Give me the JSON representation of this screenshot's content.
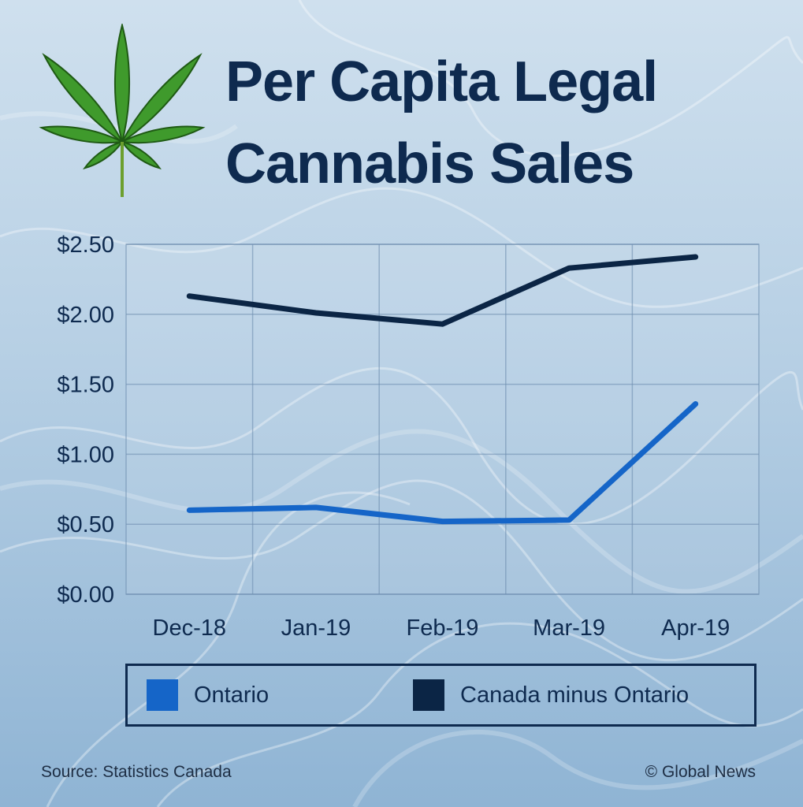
{
  "title_lines": [
    "Per Capita Legal",
    "Cannabis Sales"
  ],
  "source": "Source: Statistics Canada",
  "credit": "© Global News",
  "colors": {
    "background": "#b6cfe4",
    "title": "#0e2a4f",
    "ontario": "#1565c8",
    "canada_minus_ontario": "#0b2545",
    "grid": "#6f8fb0"
  },
  "icons": {
    "logo": "cannabis-leaf-icon"
  },
  "chart_data": {
    "type": "line",
    "title": "Per Capita Legal Cannabis Sales",
    "xlabel": "",
    "ylabel": "",
    "categories": [
      "Dec-18",
      "Jan-19",
      "Feb-19",
      "Mar-19",
      "Apr-19"
    ],
    "y_ticks": [
      "$0.00",
      "$0.50",
      "$1.00",
      "$1.50",
      "$2.00",
      "$2.50"
    ],
    "ylim": [
      0,
      2.5
    ],
    "grid": true,
    "legend_position": "bottom",
    "series": [
      {
        "name": "Ontario",
        "values": [
          0.6,
          0.62,
          0.52,
          0.53,
          1.36
        ]
      },
      {
        "name": "Canada minus Ontario",
        "values": [
          2.13,
          2.01,
          1.93,
          2.33,
          2.41
        ]
      }
    ]
  }
}
